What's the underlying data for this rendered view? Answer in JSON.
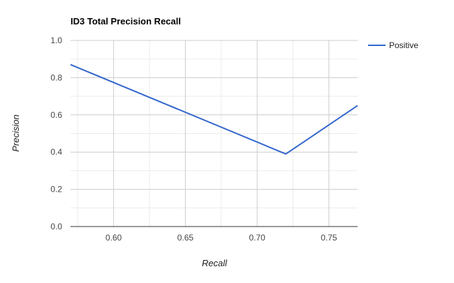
{
  "chart_data": {
    "type": "line",
    "title": "ID3 Total Precision Recall",
    "xlabel": "Recall",
    "ylabel": "Precision",
    "xlim": [
      0.57,
      0.77
    ],
    "ylim": [
      0.0,
      1.0
    ],
    "x_ticks": [
      0.6,
      0.65,
      0.7,
      0.75
    ],
    "x_tick_labels": [
      "0.60",
      "0.65",
      "0.70",
      "0.75"
    ],
    "y_ticks": [
      0.0,
      0.2,
      0.4,
      0.6,
      0.8,
      1.0
    ],
    "y_tick_labels": [
      "0.0",
      "0.2",
      "0.4",
      "0.6",
      "0.8",
      "1.0"
    ],
    "grid": true,
    "legend_position": "right",
    "series": [
      {
        "name": "Positive",
        "color": "#3366cc",
        "points": [
          {
            "x": 0.57,
            "y": 0.87
          },
          {
            "x": 0.72,
            "y": 0.39
          },
          {
            "x": 0.77,
            "y": 0.65
          }
        ]
      }
    ]
  }
}
